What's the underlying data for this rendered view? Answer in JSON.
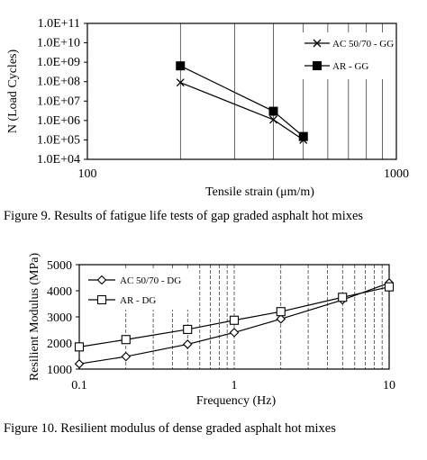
{
  "chart_data": [
    {
      "type": "line",
      "title": "",
      "xlabel": "Tensile strain (μm/m)",
      "ylabel": "N (Load Cycles)",
      "xscale": "log",
      "yscale": "log",
      "xlim": [
        100,
        1000
      ],
      "ylim": [
        10000,
        100000000000
      ],
      "x_ticks": [
        100,
        1000
      ],
      "x_tick_labels": [
        "100",
        "1000"
      ],
      "y_ticks": [
        10000,
        100000,
        1000000,
        10000000,
        100000000,
        1000000000,
        10000000000,
        100000000000
      ],
      "y_tick_labels": [
        "1.0E+04",
        "1.0E+05",
        "1.0E+06",
        "1.0E+07",
        "1.0E+08",
        "1.0E+09",
        "1.0E+10",
        "1.0E+11"
      ],
      "grid": "vertical minor lines",
      "legend": "top-right",
      "caption": "Figure 9. Results of fatigue life tests of gap graded asphalt hot mixes",
      "series": [
        {
          "name": "AC 50/70 - GG",
          "marker": "x",
          "x": [
            200,
            400,
            500
          ],
          "y": [
            90000000,
            1100000,
            100000
          ]
        },
        {
          "name": "AR - GG",
          "marker": "filled-square",
          "x": [
            200,
            400,
            500
          ],
          "y": [
            650000000,
            3000000,
            150000
          ]
        }
      ]
    },
    {
      "type": "line",
      "title": "",
      "xlabel": "Frequency (Hz)",
      "ylabel": "Resilient Modulus (MPa)",
      "xscale": "log",
      "yscale": "linear",
      "xlim": [
        0.1,
        10
      ],
      "ylim": [
        1000,
        5000
      ],
      "x_ticks": [
        0.1,
        1,
        10
      ],
      "x_tick_labels": [
        "0.1",
        "1",
        "10"
      ],
      "y_ticks": [
        1000,
        2000,
        3000,
        4000,
        5000
      ],
      "y_tick_labels": [
        "1000",
        "2000",
        "3000",
        "4000",
        "5000"
      ],
      "grid": "vertical dashed lines",
      "legend": "top-left",
      "caption": "Figure 10. Resilient modulus of dense graded asphalt hot mixes",
      "series": [
        {
          "name": "AC 50/70 - DG",
          "marker": "diamond",
          "x": [
            0.1,
            0.2,
            0.5,
            1,
            2,
            5,
            10
          ],
          "y": [
            1200,
            1480,
            1950,
            2400,
            2920,
            3650,
            4300
          ]
        },
        {
          "name": "AR - DG",
          "marker": "open-square",
          "x": [
            0.1,
            0.2,
            0.5,
            1,
            2,
            5,
            10
          ],
          "y": [
            1850,
            2130,
            2520,
            2870,
            3200,
            3750,
            4150
          ]
        }
      ]
    }
  ]
}
